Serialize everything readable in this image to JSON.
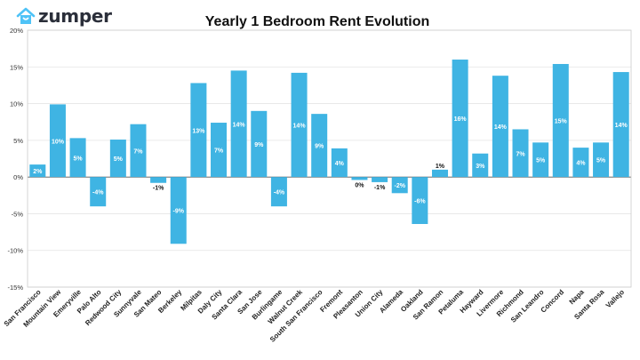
{
  "brand": {
    "name": "zumper",
    "icon": "house-icon",
    "color": "#4fc3f7"
  },
  "chart_data": {
    "type": "bar",
    "title": "Yearly 1 Bedroom Rent Evolution",
    "xlabel": "",
    "ylabel": "",
    "ylim": [
      -15,
      20
    ],
    "yticks": [
      -15,
      -10,
      -5,
      0,
      5,
      10,
      15,
      20
    ],
    "ytick_labels": [
      "-15%",
      "-10%",
      "-5%",
      "0%",
      "5%",
      "10%",
      "15%",
      "20%"
    ],
    "grid": true,
    "bar_color": "#3fb4e3",
    "categories": [
      "San Francisco",
      "Mountain View",
      "Emeryville",
      "Palo Alto",
      "Redwood City",
      "Sunnyvale",
      "San Mateo",
      "Berkeley",
      "Milpitas",
      "Daly City",
      "Santa Clara",
      "San Jose",
      "Burlingame",
      "Walnut Creek",
      "South San Francisco",
      "Fremont",
      "Pleasanton",
      "Union City",
      "Alameda",
      "Oakland",
      "San Ramon",
      "Petaluma",
      "Hayward",
      "Livermore",
      "Richmond",
      "San Leandro",
      "Concord",
      "Napa",
      "Santa Rosa",
      "Vallejo"
    ],
    "values": [
      1.7,
      9.9,
      5.3,
      -4.0,
      5.1,
      7.2,
      -0.8,
      -9.1,
      12.8,
      7.4,
      14.5,
      9.0,
      -4.0,
      14.2,
      8.6,
      3.9,
      -0.4,
      -0.7,
      -2.2,
      -6.4,
      1.0,
      16.0,
      3.2,
      13.8,
      6.5,
      4.7,
      15.4,
      4.0,
      4.7,
      14.3
    ],
    "data_labels": [
      "2%",
      "10%",
      "5%",
      "-4%",
      "5%",
      "7%",
      "-1%",
      "-9%",
      "13%",
      "7%",
      "14%",
      "9%",
      "-4%",
      "14%",
      "9%",
      "4%",
      "0%",
      "-1%",
      "-2%",
      "-6%",
      "1%",
      "16%",
      "3%",
      "14%",
      "7%",
      "5%",
      "15%",
      "4%",
      "5%",
      "14%"
    ]
  }
}
